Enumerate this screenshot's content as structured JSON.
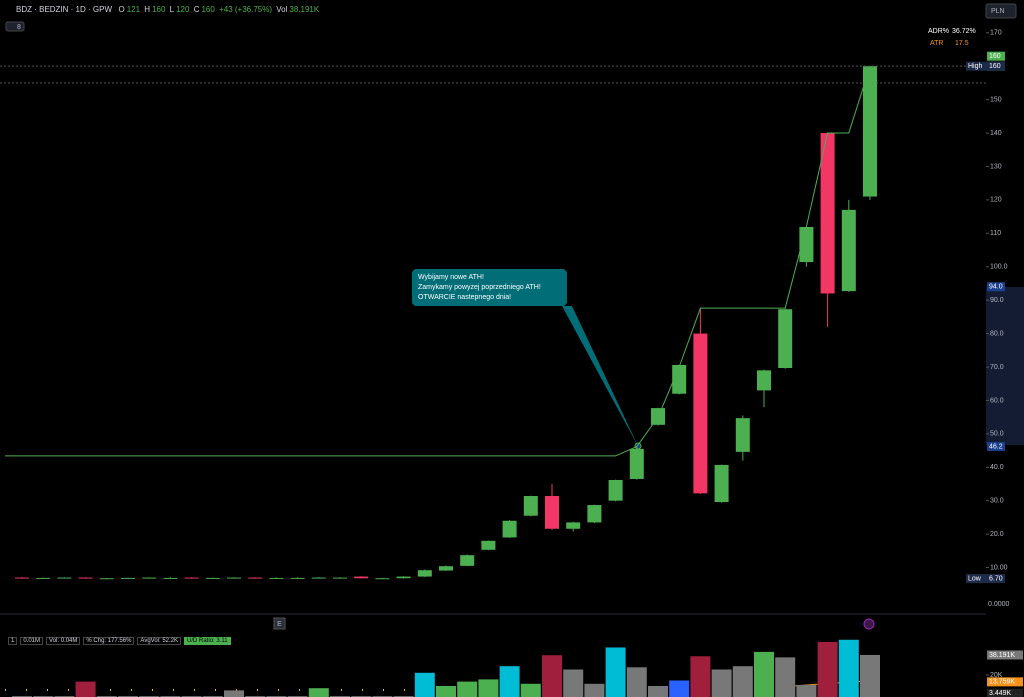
{
  "header": {
    "symbol": "BDZ · BEDZIN · 1D · GPW",
    "ohlc": [
      {
        "label": "O",
        "value": "121"
      },
      {
        "label": "H",
        "value": "160"
      },
      {
        "label": "L",
        "value": "120"
      },
      {
        "label": "C",
        "value": "160"
      }
    ],
    "change": "+43 (+36.75%)",
    "vol_label": "Vol",
    "vol": "38.191K",
    "indicator_count": "8",
    "currency": "PLN",
    "adr_label": "ADR%",
    "adr": "36.72%",
    "atr_label": "ATR",
    "atr": "17.5",
    "volume_zero": "0.0000"
  },
  "volume_legend": {
    "count": "1",
    "items": [
      "0.01M",
      "Vol: 0.04M",
      "% Chg: 177.56%",
      "AvgVol: 52.2K",
      "U/D Ratio: 3.11"
    ]
  },
  "markers": {
    "earnings": "E"
  },
  "annotation": [
    "Wybijamy nowe ATH!",
    "Zamykamy powyzej poprzedniego ATH!",
    "OTWARCIE nastepnego dnia!"
  ],
  "chart_data": {
    "type": "candlestick",
    "open": [
      7.0,
      6.9,
      6.9,
      7.0,
      6.8,
      6.8,
      6.9,
      6.9,
      7.0,
      6.9,
      6.9,
      7.0,
      6.9,
      6.9,
      6.9,
      7.0,
      7.3,
      6.7,
      6.8,
      7.3,
      9.1,
      10.5,
      15.3,
      19.0,
      25.5,
      31.4,
      21.6,
      23.5,
      30.0,
      36.5,
      52.7,
      62.0,
      80.0,
      29.6,
      44.6,
      63.0,
      69.7,
      101.4,
      140.0,
      92.7,
      121
    ],
    "high": [
      7.2,
      7.0,
      7.1,
      7.1,
      6.9,
      7.0,
      7.1,
      7.1,
      7.1,
      7.0,
      7.1,
      7.1,
      7.0,
      7.1,
      7.2,
      7.1,
      7.4,
      6.9,
      7.4,
      9.4,
      10.6,
      13.9,
      18.1,
      24.2,
      31.5,
      35.0,
      23.7,
      28.8,
      36.3,
      46.2,
      57.8,
      70.7,
      87.5,
      40.8,
      55.5,
      69.2,
      87.4,
      112.0,
      140.2,
      120.0,
      160
    ],
    "low": [
      6.8,
      6.8,
      6.8,
      6.8,
      6.7,
      6.7,
      6.8,
      6.8,
      6.8,
      6.8,
      6.8,
      6.8,
      6.8,
      6.8,
      6.8,
      6.8,
      6.7,
      6.7,
      6.7,
      7.2,
      9.0,
      10.4,
      15.2,
      18.9,
      25.3,
      21.3,
      20.8,
      23.3,
      29.8,
      36.3,
      52.5,
      61.8,
      32.0,
      29.4,
      42.0,
      58.0,
      69.5,
      100.0,
      82.0,
      92.5,
      120
    ],
    "close": [
      6.9,
      6.9,
      7.0,
      6.8,
      6.8,
      6.9,
      7.0,
      6.9,
      6.9,
      6.9,
      7.0,
      6.9,
      6.9,
      6.9,
      7.0,
      7.0,
      6.8,
      6.8,
      7.3,
      9.2,
      10.4,
      13.7,
      18.0,
      24.0,
      31.4,
      21.6,
      23.5,
      28.7,
      36.2,
      45.5,
      57.7,
      70.6,
      32.2,
      40.7,
      54.7,
      69.0,
      87.3,
      111.9,
      92.0,
      117.0,
      160
    ],
    "ath": [
      43.4,
      43.4,
      43.4,
      43.4,
      43.4,
      43.4,
      43.4,
      43.4,
      43.4,
      43.4,
      43.4,
      43.4,
      43.4,
      43.4,
      43.4,
      43.4,
      43.4,
      43.4,
      43.4,
      43.4,
      43.4,
      43.4,
      43.4,
      43.4,
      43.4,
      43.4,
      43.4,
      43.4,
      43.4,
      46.2,
      55,
      70,
      87.6,
      87.6,
      87.6,
      87.6,
      87.6,
      112,
      140,
      140,
      160
    ],
    "up_color": "#4caf50",
    "down_color": "#f23665",
    "ath_color": "#4caf50",
    "ylim": [
      -3.6,
      179.8
    ],
    "yticks": [
      {
        "value": 10,
        "label": "10.00"
      },
      {
        "value": 20,
        "label": "20.0"
      },
      {
        "value": 30,
        "label": "30.0"
      },
      {
        "value": 40,
        "label": "40.0"
      },
      {
        "value": 50,
        "label": "50.0"
      },
      {
        "value": 60,
        "label": "60.0"
      },
      {
        "value": 70,
        "label": "70.0"
      },
      {
        "value": 80,
        "label": "80.0"
      },
      {
        "value": 90,
        "label": "90.0"
      },
      {
        "value": 100,
        "label": "100.0"
      },
      110,
      120,
      130,
      140,
      150,
      160,
      170
    ],
    "price_labels": [
      {
        "value": 160,
        "label": "160",
        "color": "#4caf50"
      },
      {
        "value": 160,
        "label": "160",
        "color": "#4caf50"
      },
      {
        "value": 160,
        "label": "160",
        "tag": "High",
        "color": "#1e2a4a"
      },
      {
        "value": 94,
        "label": "94.0",
        "color": "#1c3f8f"
      },
      {
        "value": 46.2,
        "label": "46.2",
        "color": "#1c3f8f"
      },
      {
        "value": 6.7,
        "label": "6.70",
        "tag": "Low",
        "color": "#1e2a4a"
      }
    ],
    "volume": {
      "values": [
        800,
        800,
        800,
        14000,
        800,
        800,
        800,
        800,
        800,
        800,
        6000,
        800,
        800,
        800,
        8000,
        800,
        800,
        800,
        800,
        22000,
        10000,
        14000,
        16000,
        28000,
        12000,
        38000,
        25000,
        12000,
        45000,
        27000,
        10000,
        15000,
        37000,
        25000,
        28000,
        41000,
        36000,
        11000,
        50000,
        52000,
        38191
      ],
      "colors": [
        "#787878",
        "#787878",
        "#787878",
        "#a01f3c",
        "#787878",
        "#787878",
        "#787878",
        "#787878",
        "#787878",
        "#787878",
        "#787878",
        "#787878",
        "#787878",
        "#787878",
        "#4caf50",
        "#787878",
        "#787878",
        "#787878",
        "#787878",
        "#00bcd4",
        "#4caf50",
        "#4caf50",
        "#4caf50",
        "#00bcd4",
        "#4caf50",
        "#a01f3c",
        "#787878",
        "#787878",
        "#00bcd4",
        "#787878",
        "#787878",
        "#2962ff",
        "#a01f3c",
        "#787878",
        "#787878",
        "#4caf50",
        "#787878",
        "#787878",
        "#a01f3c",
        "#00bcd4",
        "#787878"
      ],
      "ylim": [
        0,
        74500
      ],
      "yticks": [
        {
          "value": 20000,
          "label": "20K"
        }
      ],
      "labels": [
        {
          "value": 38191,
          "label": "38.191K",
          "color": "#787878"
        },
        {
          "value": 13759,
          "label": "13.759K",
          "color": "#f7931a"
        },
        {
          "value": 3449,
          "label": "3.449K",
          "color": "#222"
        }
      ]
    }
  }
}
